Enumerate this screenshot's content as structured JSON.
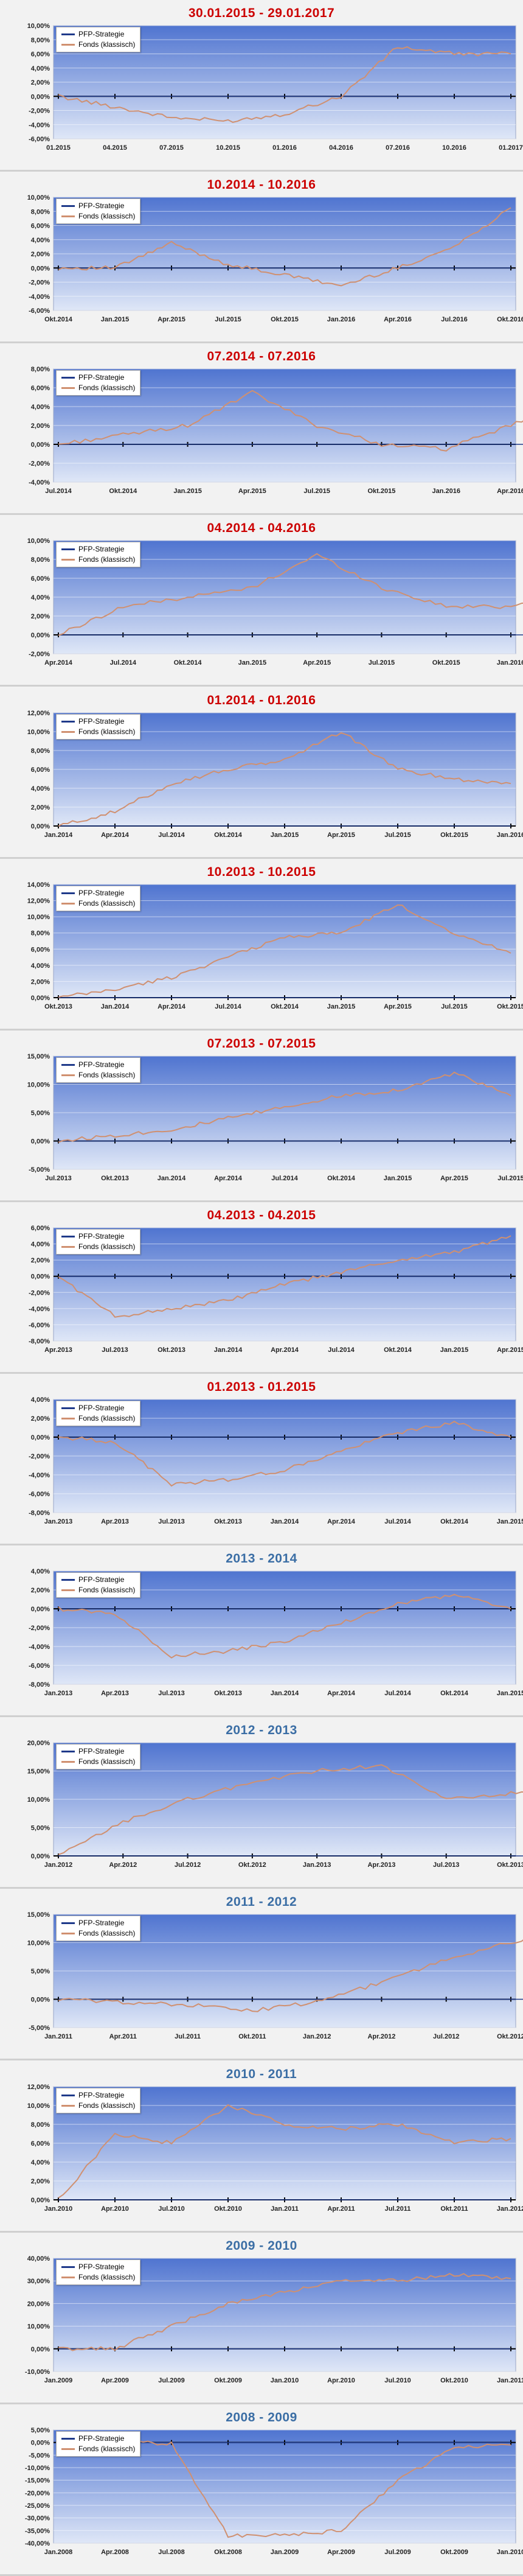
{
  "legend": {
    "strategy": "PFP-Strategie",
    "fund": "Fonds (klassisch)"
  },
  "colors": {
    "strategy": "#1f3a8a",
    "fund": "#d09070",
    "title_red": "#cc0000",
    "title_blue": "#3b6ea5",
    "plot_top": "#4f74d0",
    "plot_bottom": "#dfe7f7"
  },
  "chart_data": [
    {
      "type": "line",
      "title": "30.01.2015 - 29.01.2017",
      "title_color": "red",
      "y_ticks": [
        "10,00%",
        "8,00%",
        "6,00%",
        "4,00%",
        "2,00%",
        "0,00%",
        "-2,00%",
        "-4,00%",
        "-6,00%"
      ],
      "ylim": [
        -6,
        10
      ],
      "x_ticks": [
        "01.2015",
        "04.2015",
        "07.2015",
        "10.2015",
        "01.2016",
        "04.2016",
        "07.2016",
        "10.2016",
        "01.2017"
      ],
      "series": [
        {
          "name": "PFP-Strategie",
          "values": [
            0,
            0,
            0,
            0,
            0,
            0,
            0,
            0,
            0
          ]
        },
        {
          "name": "Fonds (klassisch)",
          "values": [
            0,
            -1.5,
            -3,
            -3.5,
            -2.5,
            0,
            7,
            6,
            6
          ]
        }
      ]
    },
    {
      "type": "line",
      "title": "10.2014 - 10.2016",
      "title_color": "red",
      "y_ticks": [
        "10,00%",
        "8,00%",
        "6,00%",
        "4,00%",
        "2,00%",
        "0,00%",
        "-2,00%",
        "-4,00%",
        "-6,00%"
      ],
      "ylim": [
        -6,
        10
      ],
      "x_ticks": [
        "Okt.2014",
        "Jan.2015",
        "Apr.2015",
        "Jul.2015",
        "Okt.2015",
        "Jan.2016",
        "Apr.2016",
        "Jul.2016",
        "Okt.2016"
      ],
      "series": [
        {
          "name": "PFP-Strategie",
          "values": [
            0,
            0,
            0,
            0,
            0,
            0,
            0,
            0,
            0
          ]
        },
        {
          "name": "Fonds (klassisch)",
          "values": [
            0,
            0,
            3.5,
            0.5,
            -1,
            -2.5,
            0,
            3,
            8.5
          ]
        }
      ]
    },
    {
      "type": "line",
      "title": "07.2014 - 07.2016",
      "title_color": "red",
      "y_ticks": [
        "8,00%",
        "6,00%",
        "4,00%",
        "2,00%",
        "0,00%",
        "-2,00%",
        "-4,00%"
      ],
      "ylim": [
        -4,
        8
      ],
      "x_ticks": [
        "Jul.2014",
        "Okt.2014",
        "Jan.2015",
        "Apr.2015",
        "Jul.2015",
        "Okt.2015",
        "Jan.2016",
        "Apr.2016"
      ],
      "series": [
        {
          "name": "PFP-Strategie",
          "values": [
            0,
            0,
            0,
            0,
            0,
            0,
            0,
            0,
            0
          ]
        },
        {
          "name": "Fonds (klassisch)",
          "values": [
            0,
            1,
            2,
            5.5,
            2,
            0,
            -0.5,
            2,
            5
          ]
        }
      ]
    },
    {
      "type": "line",
      "title": "04.2014 - 04.2016",
      "title_color": "red",
      "y_ticks": [
        "10,00%",
        "8,00%",
        "6,00%",
        "4,00%",
        "2,00%",
        "0,00%",
        "-2,00%"
      ],
      "ylim": [
        -2,
        10
      ],
      "x_ticks": [
        "Apr.2014",
        "Jul.2014",
        "Okt.2014",
        "Jan.2015",
        "Apr.2015",
        "Jul.2015",
        "Okt.2015",
        "Jan.2016"
      ],
      "series": [
        {
          "name": "PFP-Strategie",
          "values": [
            0,
            0,
            0,
            0,
            0,
            0,
            0,
            0,
            0
          ]
        },
        {
          "name": "Fonds (klassisch)",
          "values": [
            0,
            3,
            4,
            5,
            8.5,
            5,
            3,
            3,
            5
          ]
        }
      ]
    },
    {
      "type": "line",
      "title": "01.2014 - 01.2016",
      "title_color": "red",
      "y_ticks": [
        "12,00%",
        "10,00%",
        "8,00%",
        "6,00%",
        "4,00%",
        "2,00%",
        "0,00%"
      ],
      "ylim": [
        0,
        12
      ],
      "x_ticks": [
        "Jan.2014",
        "Apr.2014",
        "Jul.2014",
        "Okt.2014",
        "Jan.2015",
        "Apr.2015",
        "Jul.2015",
        "Okt.2015",
        "Jan.2016"
      ],
      "series": [
        {
          "name": "PFP-Strategie",
          "values": [
            0,
            0,
            0,
            0,
            0,
            0,
            0,
            0,
            0
          ]
        },
        {
          "name": "Fonds (klassisch)",
          "values": [
            0,
            1.5,
            4.5,
            6,
            7,
            10,
            6,
            5,
            4.5
          ]
        }
      ]
    },
    {
      "type": "line",
      "title": "10.2013 - 10.2015",
      "title_color": "red",
      "y_ticks": [
        "14,00%",
        "12,00%",
        "10,00%",
        "8,00%",
        "6,00%",
        "4,00%",
        "2,00%",
        "0,00%"
      ],
      "ylim": [
        0,
        14
      ],
      "x_ticks": [
        "Okt.2013",
        "Jan.2014",
        "Apr.2014",
        "Jul.2014",
        "Okt.2014",
        "Jan.2015",
        "Apr.2015",
        "Jul.2015",
        "Okt.2015"
      ],
      "series": [
        {
          "name": "PFP-Strategie",
          "values": [
            0,
            0,
            0,
            0,
            0,
            0,
            0,
            0,
            0
          ]
        },
        {
          "name": "Fonds (klassisch)",
          "values": [
            0,
            1,
            2.5,
            5,
            7.5,
            8,
            11.5,
            8,
            5.5
          ]
        }
      ]
    },
    {
      "type": "line",
      "title": "07.2013 - 07.2015",
      "title_color": "red",
      "y_ticks": [
        "15,00%",
        "10,00%",
        "5,00%",
        "0,00%",
        "-5,00%"
      ],
      "ylim": [
        -5,
        15
      ],
      "x_ticks": [
        "Jul.2013",
        "Okt.2013",
        "Jan.2014",
        "Apr.2014",
        "Jul.2014",
        "Okt.2014",
        "Jan.2015",
        "Apr.2015",
        "Jul.2015"
      ],
      "series": [
        {
          "name": "PFP-Strategie",
          "values": [
            0,
            0,
            0,
            0,
            0,
            0,
            0,
            0,
            0
          ]
        },
        {
          "name": "Fonds (klassisch)",
          "values": [
            0,
            1,
            2,
            4,
            6,
            8,
            9,
            12,
            8
          ]
        }
      ]
    },
    {
      "type": "line",
      "title": "04.2013 - 04.2015",
      "title_color": "red",
      "y_ticks": [
        "6,00%",
        "4,00%",
        "2,00%",
        "0,00%",
        "-2,00%",
        "-4,00%",
        "-6,00%",
        "-8,00%"
      ],
      "ylim": [
        -8,
        6
      ],
      "x_ticks": [
        "Apr.2013",
        "Jul.2013",
        "Okt.2013",
        "Jan.2014",
        "Apr.2014",
        "Jul.2014",
        "Okt.2014",
        "Jan.2015",
        "Apr.2015"
      ],
      "series": [
        {
          "name": "PFP-Strategie",
          "values": [
            0,
            0,
            0,
            0,
            0,
            0,
            0,
            0,
            0
          ]
        },
        {
          "name": "Fonds (klassisch)",
          "values": [
            0,
            -5,
            -4,
            -3,
            -1,
            0.5,
            2,
            3,
            5
          ]
        }
      ]
    },
    {
      "type": "line",
      "title": "01.2013 - 01.2015",
      "title_color": "red",
      "y_ticks": [
        "4,00%",
        "2,00%",
        "0,00%",
        "-2,00%",
        "-4,00%",
        "-6,00%",
        "-8,00%"
      ],
      "ylim": [
        -8,
        4
      ],
      "x_ticks": [
        "Jan.2013",
        "Apr.2013",
        "Jul.2013",
        "Okt.2013",
        "Jan.2014",
        "Apr.2014",
        "Jul.2014",
        "Okt.2014",
        "Jan.2015"
      ],
      "series": [
        {
          "name": "PFP-Strategie",
          "values": [
            0,
            0,
            0,
            0,
            0,
            0,
            0,
            0,
            0
          ]
        },
        {
          "name": "Fonds (klassisch)",
          "values": [
            0,
            -0.5,
            -5,
            -4.5,
            -3.5,
            -1.5,
            0.5,
            1.5,
            0
          ]
        }
      ]
    },
    {
      "type": "line",
      "title": "2013 - 2014",
      "title_color": "blue",
      "y_ticks": [
        "4,00%",
        "2,00%",
        "0,00%",
        "-2,00%",
        "-4,00%",
        "-6,00%",
        "-8,00%"
      ],
      "ylim": [
        -8,
        4
      ],
      "x_ticks": [
        "Jan.2013",
        "Apr.2013",
        "Jul.2013",
        "Okt.2013",
        "Jan.2014",
        "Apr.2014",
        "Jul.2014",
        "Okt.2014",
        "Jan.2015"
      ],
      "series": [
        {
          "name": "PFP-Strategie",
          "values": [
            0,
            0,
            0,
            0,
            0,
            0,
            0,
            0,
            0
          ]
        },
        {
          "name": "Fonds (klassisch)",
          "values": [
            0,
            -0.5,
            -5,
            -4.5,
            -3.5,
            -1.5,
            0.5,
            1.5,
            0
          ]
        }
      ]
    },
    {
      "type": "line",
      "title": "2012 - 2013",
      "title_color": "blue",
      "y_ticks": [
        "20,00%",
        "15,00%",
        "10,00%",
        "5,00%",
        "0,00%"
      ],
      "ylim": [
        0,
        20
      ],
      "x_ticks": [
        "Jan.2012",
        "Apr.2012",
        "Jul.2012",
        "Okt.2012",
        "Jan.2013",
        "Apr.2013",
        "Jul.2013",
        "Okt.2013"
      ],
      "series": [
        {
          "name": "PFP-Strategie",
          "values": [
            0,
            0,
            0,
            0,
            0,
            0,
            0,
            0,
            0
          ]
        },
        {
          "name": "Fonds (klassisch)",
          "values": [
            0,
            6,
            10,
            13,
            15,
            16,
            10,
            11,
            11.5
          ]
        }
      ]
    },
    {
      "type": "line",
      "title": "2011 - 2012",
      "title_color": "blue",
      "y_ticks": [
        "15,00%",
        "10,00%",
        "5,00%",
        "0,00%",
        "-5,00%"
      ],
      "ylim": [
        -5,
        15
      ],
      "x_ticks": [
        "Jan.2011",
        "Apr.2011",
        "Jul.2011",
        "Okt.2011",
        "Jan.2012",
        "Apr.2012",
        "Jul.2012",
        "Okt.2012"
      ],
      "series": [
        {
          "name": "PFP-Strategie",
          "values": [
            0,
            0,
            0,
            0,
            0,
            0,
            0,
            0,
            0
          ]
        },
        {
          "name": "Fonds (klassisch)",
          "values": [
            0,
            -0.5,
            -1,
            -2,
            -0.5,
            3,
            7,
            10,
            13.5
          ]
        }
      ]
    },
    {
      "type": "line",
      "title": "2010 - 2011",
      "title_color": "blue",
      "y_ticks": [
        "12,00%",
        "10,00%",
        "8,00%",
        "6,00%",
        "4,00%",
        "2,00%",
        "0,00%"
      ],
      "ylim": [
        0,
        12
      ],
      "x_ticks": [
        "Jan.2010",
        "Apr.2010",
        "Jul.2010",
        "Okt.2010",
        "Jan.2011",
        "Apr.2011",
        "Jul.2011",
        "Okt.2011",
        "Jan.2012"
      ],
      "series": [
        {
          "name": "PFP-Strategie",
          "values": [
            0,
            0,
            0,
            0,
            0,
            0,
            0,
            0,
            0
          ]
        },
        {
          "name": "Fonds (klassisch)",
          "values": [
            0,
            7,
            6,
            10,
            8,
            7.5,
            8,
            6,
            6.5
          ]
        }
      ]
    },
    {
      "type": "line",
      "title": "2009 - 2010",
      "title_color": "blue",
      "y_ticks": [
        "40,00%",
        "30,00%",
        "20,00%",
        "10,00%",
        "0,00%",
        "-10,00%"
      ],
      "ylim": [
        -10,
        40
      ],
      "x_ticks": [
        "Jan.2009",
        "Apr.2009",
        "Jul.2009",
        "Okt.2009",
        "Jan.2010",
        "Apr.2010",
        "Jul.2010",
        "Okt.2010",
        "Jan.2011"
      ],
      "series": [
        {
          "name": "PFP-Strategie",
          "values": [
            0,
            0,
            0,
            0,
            0,
            0,
            0,
            0,
            0
          ]
        },
        {
          "name": "Fonds (klassisch)",
          "values": [
            0,
            0,
            10,
            20,
            25,
            30,
            30,
            33,
            31
          ]
        }
      ]
    },
    {
      "type": "line",
      "title": "2008 - 2009",
      "title_color": "blue",
      "y_ticks": [
        "5,00%",
        "0,00%",
        "-5,00%",
        "-10,00%",
        "-15,00%",
        "-20,00%",
        "-25,00%",
        "-30,00%",
        "-35,00%",
        "-40,00%"
      ],
      "ylim": [
        -40,
        5
      ],
      "x_ticks": [
        "Jan.2008",
        "Apr.2008",
        "Jul.2008",
        "Okt.2008",
        "Jan.2009",
        "Apr.2009",
        "Jul.2009",
        "Okt.2009",
        "Jan.2010"
      ],
      "series": [
        {
          "name": "PFP-Strategie",
          "values": [
            0,
            0,
            0,
            0,
            0,
            0,
            0,
            0,
            0
          ]
        },
        {
          "name": "Fonds (klassisch)",
          "values": [
            0,
            0,
            -0.5,
            -37,
            -37,
            -35,
            -15,
            -2,
            -1
          ]
        }
      ]
    }
  ]
}
